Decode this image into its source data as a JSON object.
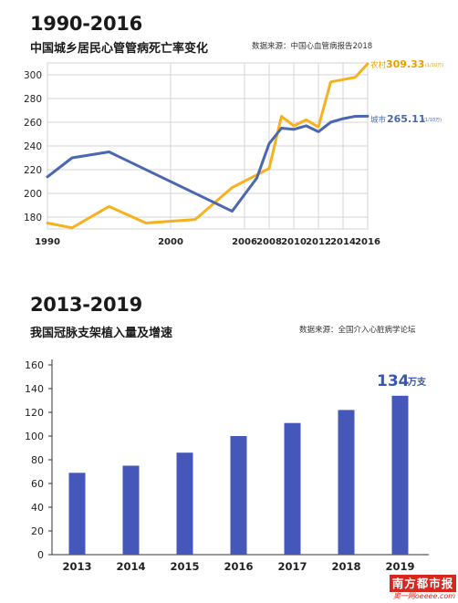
{
  "chart1": {
    "title": "1990-2016",
    "subtitle": "中国城乡居民心管管病死亡率变化",
    "source": "数据来源：中国心血管病报告2018",
    "rural_label": "农村",
    "rural_value": "309.33",
    "urban_label": "城市",
    "urban_value": "265.11",
    "unit": "(1/10万)",
    "yticks": [
      "180",
      "200",
      "220",
      "240",
      "260",
      "280",
      "300"
    ],
    "xticks": [
      "1990",
      "2000",
      "2006",
      "2008",
      "2010",
      "2012",
      "2014",
      "2016"
    ],
    "colors": {
      "rural": "#f5b21e",
      "urban": "#4a67b0",
      "grid": "#d4d4d4"
    }
  },
  "chart2": {
    "title": "2013-2019",
    "subtitle": "我国冠脉支架植入量及增速",
    "source": "数据来源：全国介入心脏病学论坛",
    "annotation_value": "134",
    "annotation_unit": "万支",
    "yticks": [
      "0",
      "20",
      "40",
      "60",
      "80",
      "100",
      "120",
      "140",
      "160"
    ],
    "colors": {
      "bar": "#4557b8",
      "annotation": "#3b55b0"
    }
  },
  "logo": {
    "text": "南方都市报",
    "sub": "奥一网oeeee.com"
  },
  "chart_data": [
    {
      "type": "line",
      "title": "1990-2016",
      "subtitle": "中国城乡居民心管管病死亡率变化",
      "ylim": [
        170,
        310
      ],
      "x_labels": [
        "1990",
        "2000",
        "2006",
        "2008",
        "2010",
        "2012",
        "2014",
        "2016"
      ],
      "grid": true,
      "series": [
        {
          "name": "农村",
          "points": [
            [
              1990,
              175
            ],
            [
              1992,
              171
            ],
            [
              1995,
              189
            ],
            [
              1998,
              175
            ],
            [
              2002,
              178
            ],
            [
              2005,
              205
            ],
            [
              2008,
              221
            ],
            [
              2009,
              265
            ],
            [
              2010,
              257
            ],
            [
              2011,
              262
            ],
            [
              2012,
              256
            ],
            [
              2013,
              294
            ],
            [
              2014,
              296
            ],
            [
              2015,
              298
            ],
            [
              2016,
              309.33
            ]
          ]
        },
        {
          "name": "城市",
          "points": [
            [
              1990,
              214
            ],
            [
              1992,
              230
            ],
            [
              1995,
              235
            ],
            [
              2005,
              185
            ],
            [
              2007,
              213
            ],
            [
              2008,
              242
            ],
            [
              2009,
              255
            ],
            [
              2010,
              254
            ],
            [
              2011,
              257
            ],
            [
              2012,
              252
            ],
            [
              2013,
              260
            ],
            [
              2014,
              263
            ],
            [
              2015,
              265
            ],
            [
              2016,
              265.11
            ]
          ]
        }
      ]
    },
    {
      "type": "bar",
      "title": "2013-2019",
      "subtitle": "我国冠脉支架植入量及增速",
      "categories": [
        "2013",
        "2014",
        "2015",
        "2016",
        "2017",
        "2018",
        "2019"
      ],
      "values": [
        69,
        75,
        86,
        100,
        111,
        122,
        134
      ],
      "ylim": [
        0,
        160
      ],
      "annotation": "134万支"
    }
  ]
}
